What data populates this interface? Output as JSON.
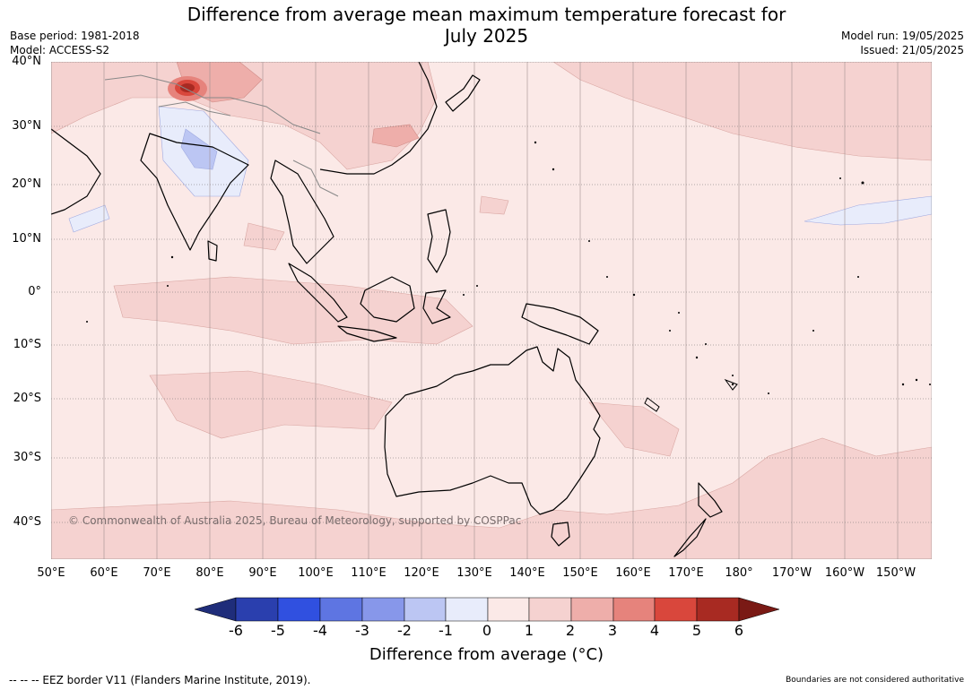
{
  "header": {
    "title_line1": "Difference from average mean maximum temperature forecast for",
    "title_line2": "July 2025",
    "base_period": "Base period: 1981-2018",
    "model": "Model: ACCESS-S2",
    "model_run": "Model run: 19/05/2025",
    "issued": "Issued: 21/05/2025"
  },
  "map": {
    "lat_labels": [
      "40°N",
      "30°N",
      "20°N",
      "10°N",
      "0°",
      "10°S",
      "20°S",
      "30°S",
      "40°S"
    ],
    "lon_labels": [
      "50°E",
      "60°E",
      "70°E",
      "80°E",
      "90°E",
      "100°E",
      "110°E",
      "120°E",
      "130°E",
      "140°E",
      "150°E",
      "160°E",
      "170°E",
      "180°",
      "170°W",
      "160°W",
      "150°W"
    ],
    "copyright": "© Commonwealth of Australia 2025, Bureau of Meteorology, supported by COSPPac",
    "ocean_color": "#fbe9e7",
    "land_outline_color": "#000000"
  },
  "colorbar": {
    "ticks": [
      "-6",
      "-5",
      "-4",
      "-3",
      "-2",
      "-1",
      "0",
      "1",
      "2",
      "3",
      "4",
      "5",
      "6"
    ],
    "colors": [
      "#1f2d7a",
      "#2a3fae",
      "#3050e0",
      "#5e75e2",
      "#8797ea",
      "#bcc6f3",
      "#e8ecfb",
      "#fbe9e7",
      "#f5d2d0",
      "#eeaeaa",
      "#e6837c",
      "#d9473c",
      "#a82a22",
      "#7a1a15"
    ],
    "label": "Difference from average (°C)"
  },
  "footer": {
    "eez": "--  --  -- EEZ border V11 (Flanders Marine Institute, 2019).",
    "boundaries": "Boundaries are not considered authoritative"
  }
}
